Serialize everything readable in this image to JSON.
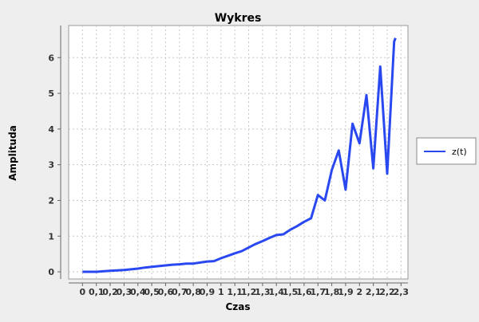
{
  "chart_data": {
    "type": "line",
    "title": "Wykres",
    "xlabel": "Czas",
    "ylabel": "Amplituda",
    "xlim": [
      -0.1,
      2.35
    ],
    "ylim": [
      -0.2,
      6.9
    ],
    "grid": true,
    "legend_position": "right",
    "x_ticks": [
      {
        "value": 0,
        "label": "0"
      },
      {
        "value": 0.1,
        "label": "0,1"
      },
      {
        "value": 0.2,
        "label": "0,2"
      },
      {
        "value": 0.3,
        "label": "0,3"
      },
      {
        "value": 0.4,
        "label": "0,4"
      },
      {
        "value": 0.5,
        "label": "0,5"
      },
      {
        "value": 0.6,
        "label": "0,6"
      },
      {
        "value": 0.7,
        "label": "0,7"
      },
      {
        "value": 0.8,
        "label": "0,8"
      },
      {
        "value": 0.9,
        "label": "0,9"
      },
      {
        "value": 1.0,
        "label": "1"
      },
      {
        "value": 1.1,
        "label": "1,1"
      },
      {
        "value": 1.2,
        "label": "1,2"
      },
      {
        "value": 1.3,
        "label": "1,3"
      },
      {
        "value": 1.4,
        "label": "1,4"
      },
      {
        "value": 1.5,
        "label": "1,5"
      },
      {
        "value": 1.6,
        "label": "1,6"
      },
      {
        "value": 1.7,
        "label": "1,7"
      },
      {
        "value": 1.8,
        "label": "1,8"
      },
      {
        "value": 1.9,
        "label": "1,9"
      },
      {
        "value": 2.0,
        "label": "2"
      },
      {
        "value": 2.1,
        "label": "2,1"
      },
      {
        "value": 2.2,
        "label": "2,2"
      },
      {
        "value": 2.3,
        "label": "2,3"
      }
    ],
    "y_ticks": [
      {
        "value": 0,
        "label": "0"
      },
      {
        "value": 1,
        "label": "1"
      },
      {
        "value": 2,
        "label": "2"
      },
      {
        "value": 3,
        "label": "3"
      },
      {
        "value": 4,
        "label": "4"
      },
      {
        "value": 5,
        "label": "5"
      },
      {
        "value": 6,
        "label": "6"
      }
    ],
    "series": [
      {
        "name": "z(t)",
        "color": "#2a48f0",
        "points": [
          [
            0.0,
            0.0
          ],
          [
            0.1,
            0.0
          ],
          [
            0.2,
            0.03
          ],
          [
            0.3,
            0.05
          ],
          [
            0.35,
            0.07
          ],
          [
            0.4,
            0.09
          ],
          [
            0.45,
            0.12
          ],
          [
            0.5,
            0.14
          ],
          [
            0.55,
            0.16
          ],
          [
            0.6,
            0.18
          ],
          [
            0.65,
            0.2
          ],
          [
            0.7,
            0.21
          ],
          [
            0.75,
            0.23
          ],
          [
            0.8,
            0.23
          ],
          [
            0.85,
            0.26
          ],
          [
            0.9,
            0.29
          ],
          [
            0.95,
            0.3
          ],
          [
            1.0,
            0.38
          ],
          [
            1.05,
            0.45
          ],
          [
            1.1,
            0.52
          ],
          [
            1.15,
            0.58
          ],
          [
            1.2,
            0.68
          ],
          [
            1.25,
            0.78
          ],
          [
            1.3,
            0.86
          ],
          [
            1.35,
            0.95
          ],
          [
            1.4,
            1.03
          ],
          [
            1.45,
            1.05
          ],
          [
            1.5,
            1.18
          ],
          [
            1.55,
            1.28
          ],
          [
            1.6,
            1.4
          ],
          [
            1.65,
            1.5
          ],
          [
            1.7,
            2.15
          ],
          [
            1.75,
            2.0
          ],
          [
            1.8,
            2.85
          ],
          [
            1.85,
            3.4
          ],
          [
            1.9,
            2.3
          ],
          [
            1.95,
            4.15
          ],
          [
            2.0,
            3.6
          ],
          [
            2.05,
            4.95
          ],
          [
            2.1,
            2.9
          ],
          [
            2.15,
            5.75
          ],
          [
            2.2,
            2.75
          ],
          [
            2.25,
            6.45
          ],
          [
            2.26,
            6.55
          ]
        ]
      }
    ]
  }
}
